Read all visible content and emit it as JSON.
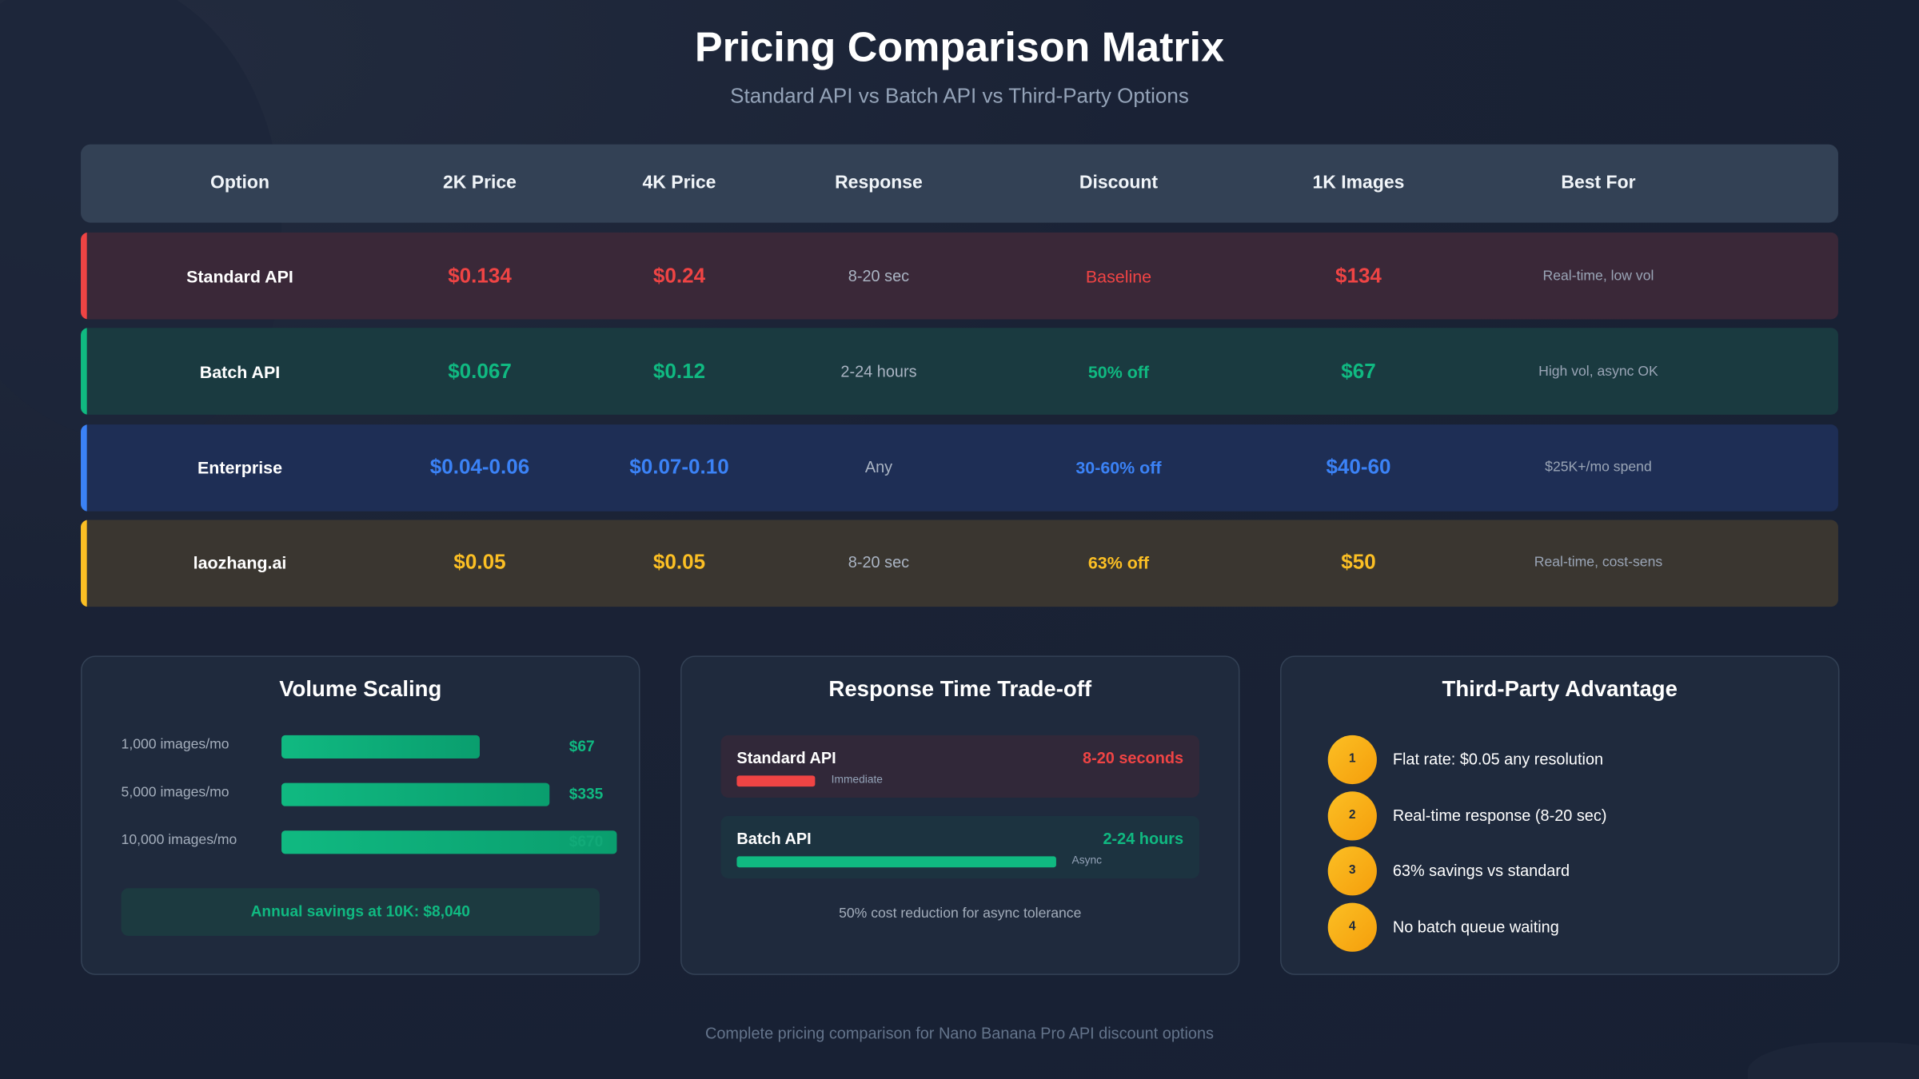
{
  "title": "Pricing Comparison Matrix",
  "subtitle": "Standard API vs Batch API vs Third-Party Options",
  "table": {
    "headers": [
      "Option",
      "2K Price",
      "4K Price",
      "Response",
      "Discount",
      "1K Images",
      "Best For"
    ],
    "rows": [
      {
        "option": "Standard API",
        "price_2k": "$0.134",
        "price_4k": "$0.24",
        "response": "8-20 sec",
        "discount": "Baseline",
        "images_1k": "$134",
        "best_for": "Real-time, low vol",
        "accent": "#ef4444",
        "bg": "#3a2838",
        "discount_weight": "normal"
      },
      {
        "option": "Batch API",
        "price_2k": "$0.067",
        "price_4k": "$0.12",
        "response": "2-24 hours",
        "discount": "50% off",
        "images_1k": "$67",
        "best_for": "High vol, async OK",
        "accent": "#10b981",
        "bg": "#1a3a40",
        "discount_weight": "bold"
      },
      {
        "option": "Enterprise",
        "price_2k": "$0.04-0.06",
        "price_4k": "$0.07-0.10",
        "response": "Any",
        "discount": "30-60% off",
        "images_1k": "$40-60",
        "best_for": "$25K+/mo spend",
        "accent": "#3b82f6",
        "bg": "#1e2e55",
        "discount_weight": "bold"
      },
      {
        "option": "laozhang.ai",
        "price_2k": "$0.05",
        "price_4k": "$0.05",
        "response": "8-20 sec",
        "discount": "63% off",
        "images_1k": "$50",
        "best_for": "Real-time, cost-sens",
        "accent": "#fbbf24",
        "bg": "#3a3630",
        "discount_weight": "bold"
      }
    ]
  },
  "volume": {
    "title": "Volume Scaling",
    "rows": [
      {
        "label": "1,000 images/mo",
        "value": "$67",
        "fill": 0.59
      },
      {
        "label": "5,000 images/mo",
        "value": "$335",
        "fill": 0.8
      },
      {
        "label": "10,000 images/mo",
        "value": "$670",
        "fill": 1.0
      }
    ],
    "savings": "Annual savings at 10K: $8,040"
  },
  "response": {
    "title": "Response Time Trade-off",
    "items": [
      {
        "name": "Standard API",
        "time": "8-20 seconds",
        "tag": "Immediate",
        "fill": 0.17,
        "color": "#ef4444",
        "bg": "#312839"
      },
      {
        "name": "Batch API",
        "time": "2-24 hours",
        "tag": "Async",
        "fill": 0.69,
        "color": "#10b981",
        "bg": "#1c3340"
      }
    ],
    "note": "50% cost reduction for async tolerance"
  },
  "advantage": {
    "title": "Third-Party Advantage",
    "items": [
      {
        "num": "1",
        "text": "Flat rate: $0.05 any resolution"
      },
      {
        "num": "2",
        "text": "Real-time response (8-20 sec)"
      },
      {
        "num": "3",
        "text": "63% savings vs standard"
      },
      {
        "num": "4",
        "text": "No batch queue waiting"
      }
    ]
  },
  "footer": "Complete pricing comparison for Nano Banana Pro API discount options"
}
